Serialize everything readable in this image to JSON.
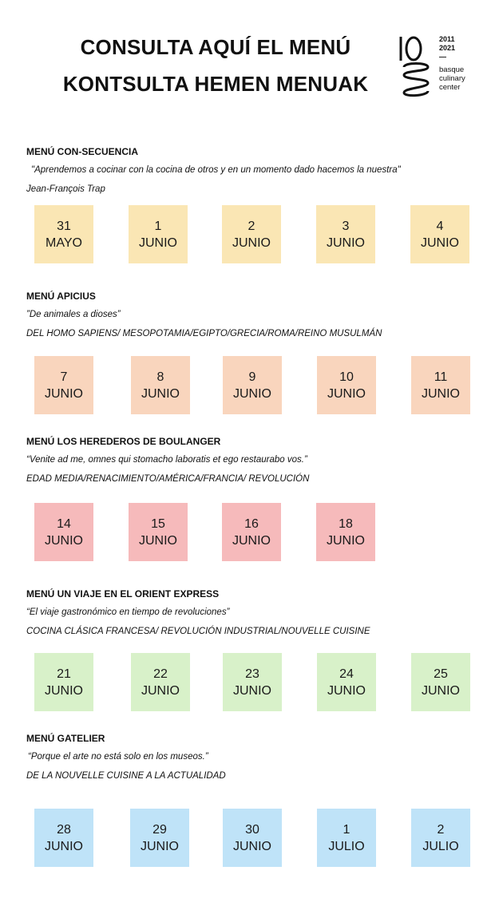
{
  "header": {
    "title_line1": "CONSULTA AQUÍ EL MENÚ",
    "title_line2": "KONTSULTA HEMEN MENUAK"
  },
  "logo": {
    "years_top": "2011",
    "years_bottom": "2021",
    "dash": "—",
    "name_line1": "basque",
    "name_line2": "culinary",
    "name_line3": "center"
  },
  "menus": [
    {
      "title": "MENÚ CON-SECUENCIA",
      "quote": "\"Aprendemos a cocinar con la cocina de otros y en un momento dado hacemos la nuestra\"",
      "subtitle": "Jean-François Trap",
      "color": "#fae6b4",
      "dates": [
        {
          "day": "31",
          "month": "MAYO"
        },
        {
          "day": "1",
          "month": "JUNIO"
        },
        {
          "day": "2",
          "month": "JUNIO"
        },
        {
          "day": "3",
          "month": "JUNIO"
        },
        {
          "day": "4",
          "month": "JUNIO"
        }
      ]
    },
    {
      "title": "MENÚ APICIUS",
      "quote": "”De animales a dioses”",
      "subtitle": "DEL HOMO SAPIENS/ MESOPOTAMIA/EGIPTO/GRECIA/ROMA/REINO MUSULMÁN",
      "color": "#f9d5bd",
      "dates": [
        {
          "day": "7",
          "month": "JUNIO"
        },
        {
          "day": "8",
          "month": "JUNIO"
        },
        {
          "day": "9",
          "month": "JUNIO"
        },
        {
          "day": "10",
          "month": "JUNIO"
        },
        {
          "day": "11",
          "month": "JUNIO"
        }
      ]
    },
    {
      "title": "MENÚ LOS HEREDEROS DE BOULANGER",
      "quote": "“Venite ad me, omnes qui stomacho laboratis et ego restaurabo vos.”",
      "subtitle": "EDAD MEDIA/RENACIMIENTO/AMÉRICA/FRANCIA/ REVOLUCIÓN",
      "color": "#f6babb",
      "dates": [
        {
          "day": "14",
          "month": "JUNIO"
        },
        {
          "day": "15",
          "month": "JUNIO"
        },
        {
          "day": "16",
          "month": "JUNIO"
        },
        {
          "day": "18",
          "month": "JUNIO"
        }
      ]
    },
    {
      "title": "MENÚ UN VIAJE EN EL ORIENT EXPRESS",
      "quote": "“El viaje gastronómico en tiempo de revoluciones”",
      "subtitle": "COCINA CLÁSICA FRANCESA/ REVOLUCIÓN INDUSTRIAL/NOUVELLE CUISINE",
      "color": "#d8f1c9",
      "dates": [
        {
          "day": "21",
          "month": "JUNIO"
        },
        {
          "day": "22",
          "month": "JUNIO"
        },
        {
          "day": "23",
          "month": "JUNIO"
        },
        {
          "day": "24",
          "month": "JUNIO"
        },
        {
          "day": "25",
          "month": "JUNIO"
        }
      ]
    },
    {
      "title": "MENÚ GATELIER",
      "quote": "“Porque el arte no está solo en los museos.”",
      "subtitle": "DE LA NOUVELLE CUISINE A LA ACTUALIDAD",
      "color": "#bfe3f8",
      "dates": [
        {
          "day": "28",
          "month": "JUNIO"
        },
        {
          "day": "29",
          "month": "JUNIO"
        },
        {
          "day": "30",
          "month": "JUNIO"
        },
        {
          "day": "1",
          "month": "JULIO"
        },
        {
          "day": "2",
          "month": "JULIO"
        }
      ]
    }
  ]
}
